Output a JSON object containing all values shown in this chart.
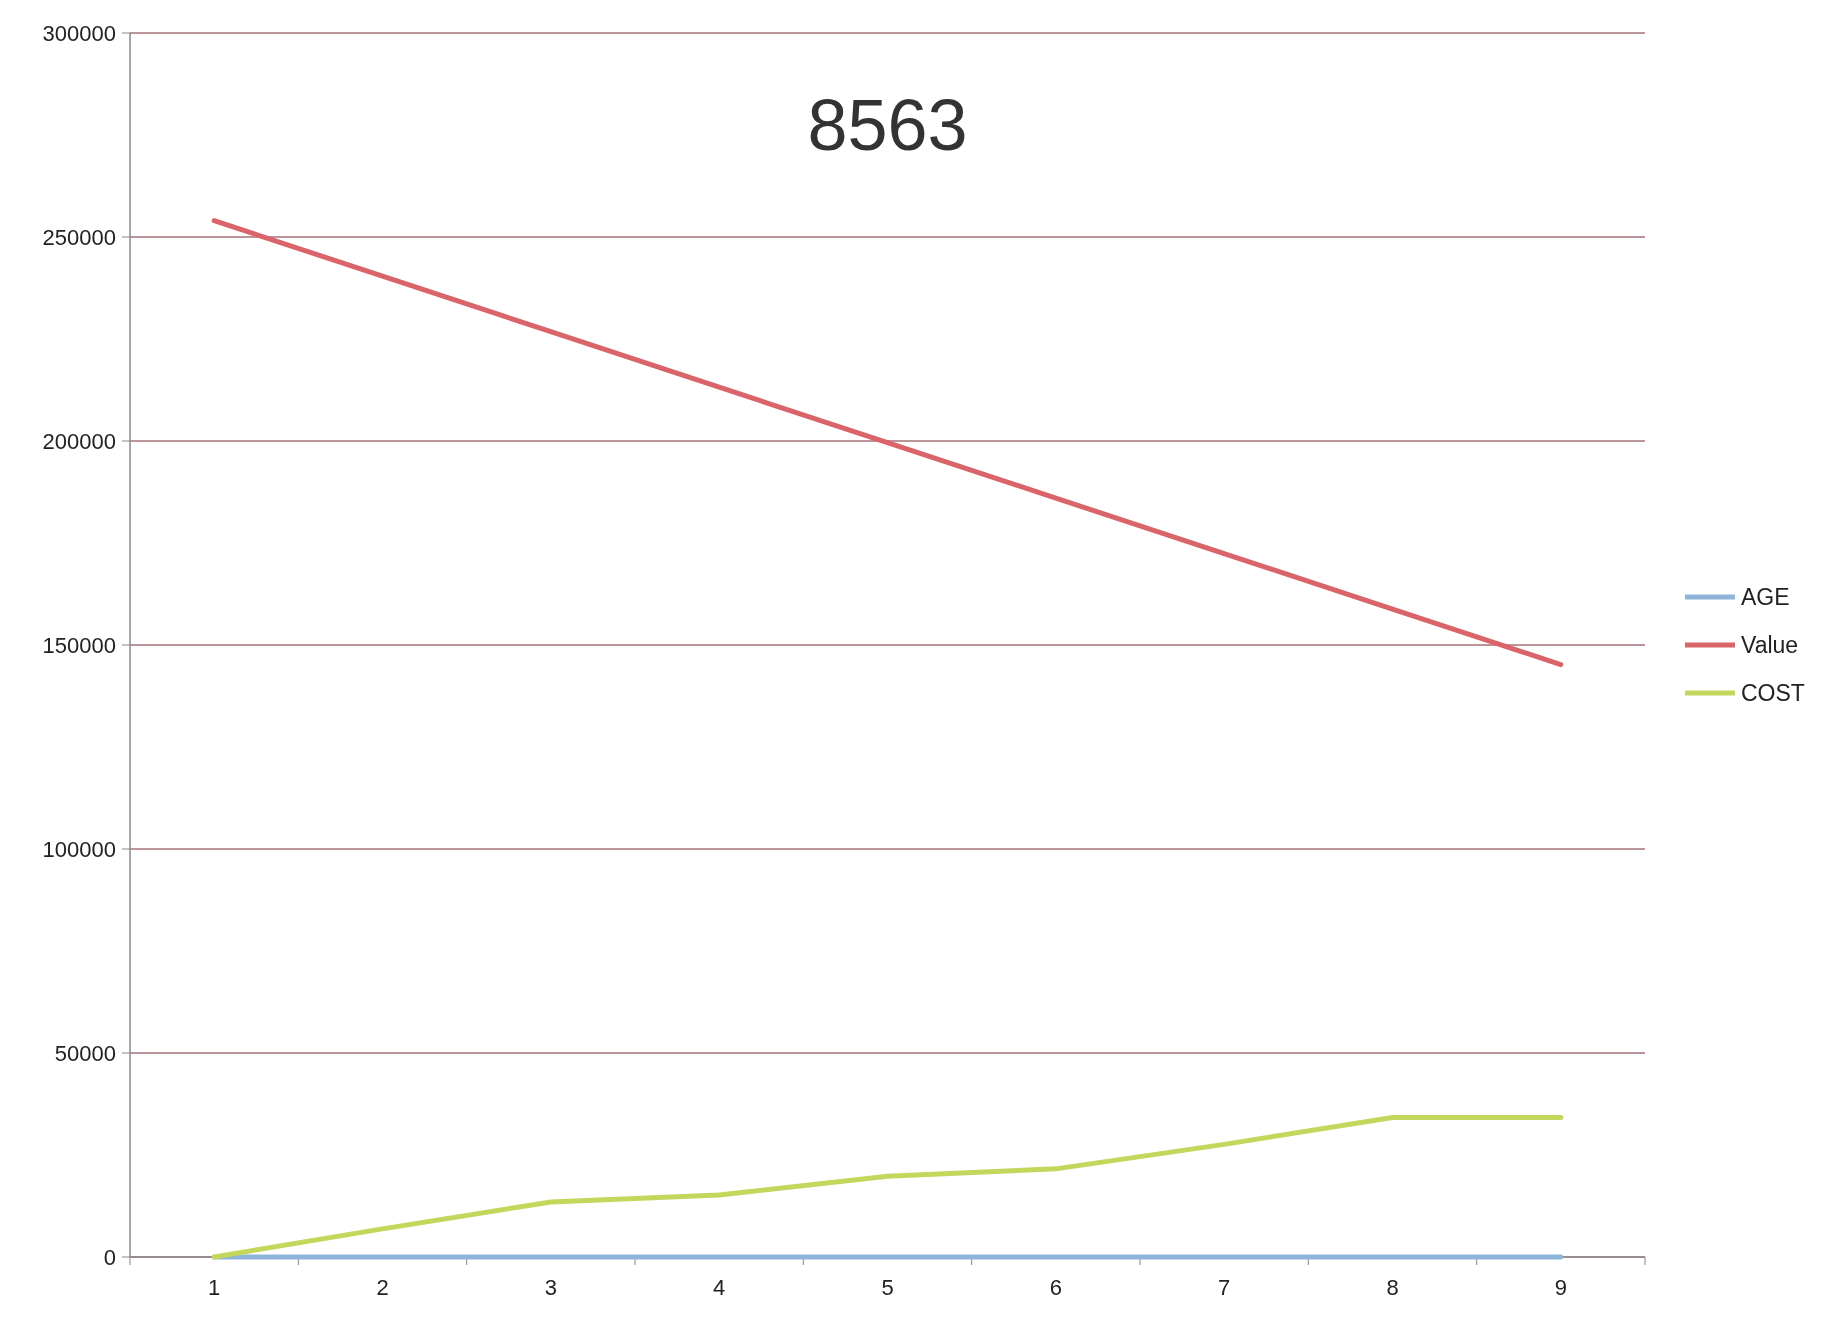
{
  "chart_data": {
    "type": "line",
    "title": "8563",
    "categories": [
      "1",
      "2",
      "3",
      "4",
      "5",
      "6",
      "7",
      "8",
      "9"
    ],
    "series": [
      {
        "name": "AGE",
        "color": "#8fb4d9",
        "values": [
          0,
          0,
          0,
          0,
          0,
          0,
          0,
          0,
          0
        ]
      },
      {
        "name": "Value",
        "color": "#d9646a",
        "values": [
          254000,
          240400,
          226800,
          213200,
          199600,
          186000,
          172400,
          158800,
          145200
        ]
      },
      {
        "name": "COST",
        "color": "#c5d65c",
        "values": [
          0,
          6900,
          13500,
          15200,
          19800,
          21600,
          27600,
          34200,
          34200
        ]
      }
    ],
    "ylim": [
      0,
      300000
    ],
    "yticks": [
      0,
      50000,
      100000,
      150000,
      200000,
      250000,
      300000
    ],
    "grid": "y",
    "legend": "right",
    "marker": "none",
    "line_style": "solid"
  }
}
